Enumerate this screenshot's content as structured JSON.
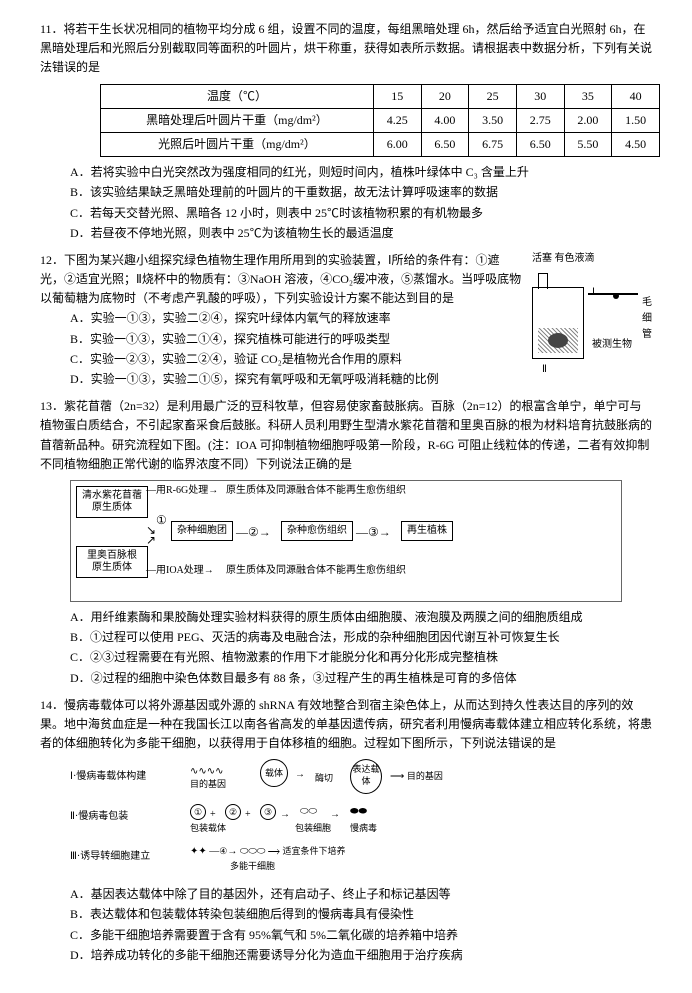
{
  "q11": {
    "stem": "11．将若干生长状况相同的植物平均分成 6 组，设置不同的温度，每组黑暗处理 6h，然后给予适宜白光照射 6h，在黑暗处理后和光照后分别截取同等面积的叶圆片，烘干称重，获得如表所示数据。请根据表中数据分析，下列有关说法错误的是",
    "table": {
      "h": [
        "温度（℃）",
        "15",
        "20",
        "25",
        "30",
        "35",
        "40"
      ],
      "r1": [
        "黑暗处理后叶圆片干重（mg/dm²）",
        "4.25",
        "4.00",
        "3.50",
        "2.75",
        "2.00",
        "1.50"
      ],
      "r2": [
        "光照后叶圆片干重（mg/dm²）",
        "6.00",
        "6.50",
        "6.75",
        "6.50",
        "5.50",
        "4.50"
      ]
    },
    "A": "A．若将实验中白光突然改为强度相同的红光，则短时间内，植株叶绿体中 C₃ 含量上升",
    "B": "B．该实验结果缺乏黑暗处理前的叶圆片的干重数据，故无法计算呼吸速率的数据",
    "C": "C．若每天交替光照、黑暗各 12 小时，则表中 25℃时该植物积累的有机物最多",
    "D": "D．若昼夜不停地光照，则表中 25℃为该植物生长的最适温度"
  },
  "q12": {
    "stem1": "12．下图为某兴趣小组探究绿色植物生理作用所用到的实验装置，Ⅰ所给的条件有：①遮光，②适宜光照；Ⅱ烧杯中的物质有：③NaOH 溶液，④CO₂缓冲液，⑤蒸馏水。当呼吸底物以葡萄糖为底物时（不考虑产乳酸的呼吸），下列实验设计方案不能达到目的是",
    "A": "A．实验一①③，实验二②④，探究叶绿体内氧气的释放速率",
    "B": "B．实验一①③，实验二①④，探究植株可能进行的呼吸类型",
    "C": "C．实验一②③，实验二②④，验证 CO₂是植物光合作用的原料",
    "D": "D．实验一①③，实验二①⑤，探究有氧呼吸和无氧呼吸消耗糖的比例",
    "appa": {
      "a": "活塞 有色液滴",
      "b": "毛细管",
      "c": "被测生物"
    }
  },
  "q13": {
    "stem": "13．紫花苜蓿（2n=32）是利用最广泛的豆科牧草，但容易使家畜鼓胀病。百脉（2n=12）的根富含单宁，单宁可与植物蛋白质结合，不引起家畜采食后鼓胀。科研人员利用野生型清水紫花苜蓿和里奥百脉的根为材料培育抗鼓胀病的苜蓿新品种。研究流程如下图。(注：IOA 可抑制植物细胞呼吸第一阶段，R-6G 可阻止线粒体的传递，二者有效抑制不同植物细胞正常代谢的临界浓度不同）下列说法正确的是",
    "flow": {
      "b1": "清水紫花苜蓿\n原生质体",
      "l1": "用R-6G处理",
      "t1": "原生质体及同源融合体不能再生愈伤组织",
      "b2": "①",
      "b3": "杂种细胞团",
      "b4": "②",
      "b5": "杂种愈伤组织",
      "b6": "③",
      "b7": "再生植株",
      "b8": "里奥百脉根\n原生质体",
      "l2": "用IOA处理",
      "t2": "原生质体及同源融合体不能再生愈伤组织"
    },
    "A": "A．用纤维素酶和果胶酶处理实验材料获得的原生质体由细胞膜、液泡膜及两膜之间的细胞质组成",
    "B": "B．①过程可以使用 PEG、灭活的病毒及电融合法，形成的杂种细胞团因代谢互补可恢复生长",
    "C": "C．②③过程需要在有光照、植物激素的作用下才能脱分化和再分化形成完整植株",
    "D": "D．②过程的细胞中染色体数目最多有 88 条，③过程产生的再生植株是可育的多倍体"
  },
  "q14": {
    "stem": "14．慢病毒载体可以将外源基因或外源的 shRNA 有效地整合到宿主染色体上，从而达到持久性表达目的序列的效果。地中海贫血症是一种在我国长江以南各省高发的单基因遗传病，研究者利用慢病毒载体建立相应转化系统，将患者的体细胞转化为多能干细胞，以获得用于自体移植的细胞。过程如下图所示，下列说法错误的是",
    "diag": {
      "l1": "Ⅰ·慢病毒载体构建",
      "l2": "Ⅱ·慢病毒包装",
      "l3": "Ⅲ·诱导转细胞建立",
      "a": "目的基因",
      "b": "载体",
      "c": "表达载体",
      "d": "目的基因",
      "e": "①",
      "f": "②",
      "g": "③",
      "h": "酶切",
      "i": "包装载体",
      "j": "包装细胞",
      "k": "慢病毒",
      "m": "④",
      "n": "多能干细胞",
      "o": "适宜条件下培养"
    },
    "A": "A．基因表达载体中除了目的基因外，还有启动子、终止子和标记基因等",
    "B": "B．表达载体和包装载体转染包装细胞后得到的慢病毒具有侵染性",
    "C": "C．多能干细胞培养需要置于含有 95%氧气和 5%二氧化碳的培养箱中培养",
    "D": "D．培养成功转化的多能干细胞还需要诱导分化为造血干细胞用于治疗疾病"
  }
}
